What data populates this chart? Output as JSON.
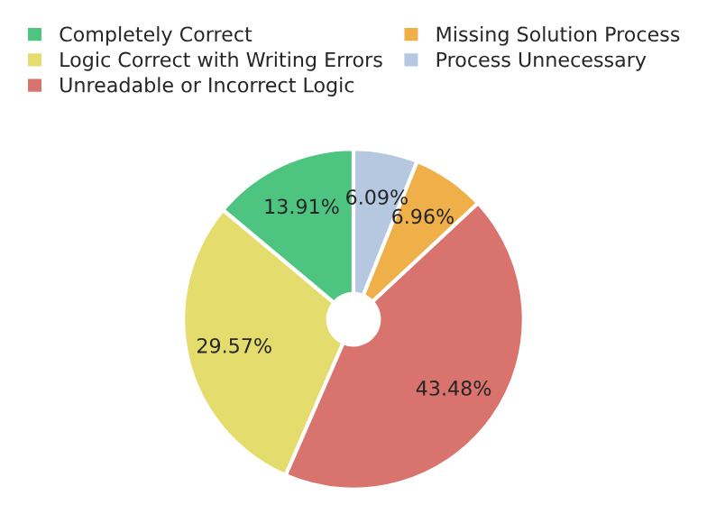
{
  "chart_data": {
    "type": "donut",
    "categories": [
      "Completely Correct",
      "Logic Correct with Writing Errors",
      "Unreadable or Incorrect Logic",
      "Missing Solution Process",
      "Process Unnecessary"
    ],
    "values": [
      13.91,
      29.57,
      43.48,
      6.96,
      6.09
    ],
    "colors": [
      "#4dc47f",
      "#e5dc6e",
      "#d8736e",
      "#efb04a",
      "#b5c8e0"
    ],
    "value_labels": [
      "13.91%",
      "29.57%",
      "43.48%",
      "6.96%",
      "6.09%"
    ],
    "legend": "top"
  }
}
